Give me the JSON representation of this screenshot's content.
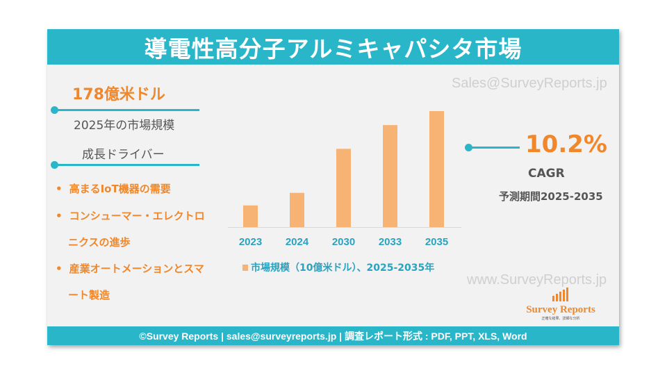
{
  "title": "導電性高分子アルミキャパシタ市場",
  "watermark_top": "Sales@SurveyReports.jp",
  "watermark_bottom": "www.SurveyReports.jp",
  "market_size": {
    "value": "178億米ドル",
    "label": "2025年の市場規模"
  },
  "growth_drivers": {
    "heading": "成長ドライバー",
    "items": [
      {
        "line1": "高まるIoT機器の需要",
        "line2": ""
      },
      {
        "line1": "コンシューマー・エレクトロ",
        "line2": "ニクスの進歩"
      },
      {
        "line1": "産業オートメーションとスマ",
        "line2": "ート製造"
      }
    ]
  },
  "cagr": {
    "value": "10.2%",
    "label": "CAGR",
    "period": "予測期間2025-2035"
  },
  "logo": {
    "name": "Survey Reports",
    "tagline": "正確な結果、詳細な分析"
  },
  "footer": "©Survey Reports | sales@surveyreports.jp |  調査レポート形式 : PDF, PPT, XLS, Word",
  "colors": {
    "accent": "#29b6c9",
    "orange": "#f0872a",
    "bar": "#f7b374"
  },
  "chart_data": {
    "type": "bar",
    "categories": [
      "2023",
      "2024",
      "2030",
      "2033",
      "2035"
    ],
    "values": [
      31,
      49,
      112,
      146,
      166
    ],
    "legend": "市場規模（10億米ドル）、2025-2035年",
    "legend_position": "bottom",
    "grid": false
  }
}
